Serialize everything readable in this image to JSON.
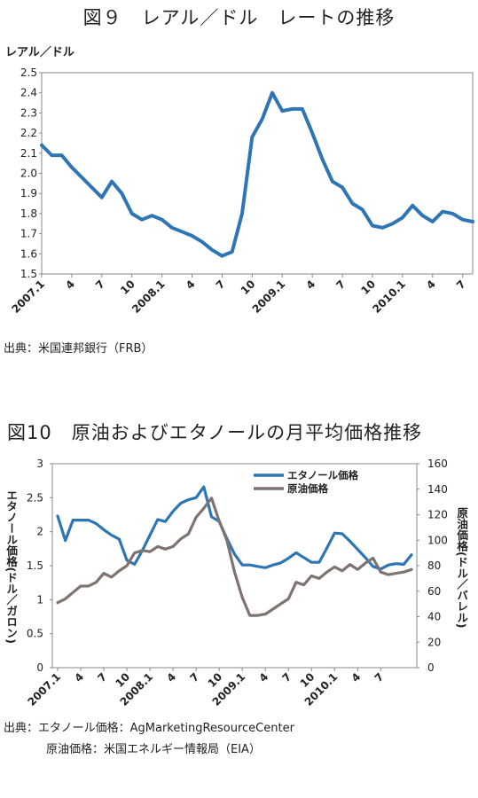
{
  "fig1": {
    "title": "図９　レアル／ドル　レートの推移",
    "unit_label": "レアル／ドル",
    "source": "出典：米国連邦銀行（FRB）"
  },
  "fig2": {
    "title": "図10　原油およびエタノールの月平均価格推移",
    "left_axis_label": "エタノール価格(ドル／ガロン)",
    "right_axis_label": "原油価格(ドル／バレル)",
    "source_line1": "出典：エタノール価格：AgMarketingResourceCenter",
    "source_line2": "原油価格：米国エネルギー情報局（EIA）"
  },
  "chart_data": [
    {
      "type": "line",
      "title": "図９　レアル／ドル　レートの推移",
      "ylabel": "レアル／ドル",
      "ylim": [
        1.5,
        2.5
      ],
      "yticks": [
        "1.5",
        "1.6",
        "1.7",
        "1.8",
        "1.9",
        "2.0",
        "2.1",
        "2.2",
        "2.3",
        "2.4",
        "2.5"
      ],
      "x_tick_labels": [
        "2007.1",
        "4",
        "7",
        "10",
        "2008.1",
        "4",
        "7",
        "10",
        "2009.1",
        "4",
        "7",
        "10",
        "2010.1",
        "4",
        "7"
      ],
      "grid": false,
      "colors": [
        "#2e75b6"
      ],
      "series": [
        {
          "values": [
            2.14,
            2.09,
            2.09,
            2.03,
            1.98,
            1.93,
            1.88,
            1.96,
            1.9,
            1.8,
            1.77,
            1.79,
            1.77,
            1.73,
            1.71,
            1.69,
            1.66,
            1.62,
            1.59,
            1.61,
            1.8,
            2.18,
            2.27,
            2.4,
            2.31,
            2.32,
            2.32,
            2.2,
            2.07,
            1.96,
            1.93,
            1.85,
            1.82,
            1.74,
            1.73,
            1.75,
            1.78,
            1.84,
            1.79,
            1.76,
            1.81,
            1.8,
            1.77,
            1.76
          ]
        }
      ]
    },
    {
      "type": "line",
      "title": "図10　原油およびエタノールの月平均価格推移",
      "ylabel": "エタノール価格(ドル／ガロン)",
      "y2label": "原油価格(ドル／バレル)",
      "ylim": [
        0,
        3
      ],
      "y2lim": [
        0,
        160
      ],
      "yticks": [
        "0",
        "0.5",
        "1",
        "1.5",
        "2",
        "2.5",
        "3"
      ],
      "y2ticks": [
        "0",
        "20",
        "40",
        "60",
        "80",
        "100",
        "120",
        "140",
        "160"
      ],
      "x_tick_labels": [
        "2007.1",
        "4",
        "7",
        "10",
        "2008.1",
        "4",
        "7",
        "10",
        "2009.1",
        "4",
        "7",
        "10",
        "2010.1",
        "4",
        "7"
      ],
      "legend_position": "top-right",
      "grid": false,
      "series": [
        {
          "name": "エタノール価格",
          "axis": "left",
          "color": "#2e75b6",
          "values": [
            2.23,
            1.87,
            2.17,
            2.17,
            2.17,
            2.12,
            2.03,
            1.95,
            1.89,
            1.58,
            1.52,
            1.72,
            1.95,
            2.18,
            2.15,
            2.3,
            2.42,
            2.47,
            2.5,
            2.66,
            2.22,
            2.15,
            1.9,
            1.67,
            1.51,
            1.51,
            1.49,
            1.47,
            1.51,
            1.54,
            1.61,
            1.69,
            1.62,
            1.55,
            1.55,
            1.76,
            1.98,
            1.97,
            1.86,
            1.74,
            1.62,
            1.49,
            1.45,
            1.51,
            1.53,
            1.52,
            1.66
          ]
        },
        {
          "name": "原油価格",
          "axis": "right",
          "color": "#7f7370",
          "values": [
            51,
            54,
            59,
            64,
            64,
            67,
            74,
            71,
            76,
            80,
            90,
            92,
            91,
            95,
            93,
            95,
            101,
            105,
            118,
            125,
            133,
            115,
            100,
            75,
            55,
            41,
            41,
            42,
            46,
            50,
            54,
            67,
            65,
            72,
            70,
            75,
            79,
            76,
            81,
            77,
            82,
            86,
            75,
            73,
            74,
            75,
            77
          ]
        }
      ]
    }
  ]
}
